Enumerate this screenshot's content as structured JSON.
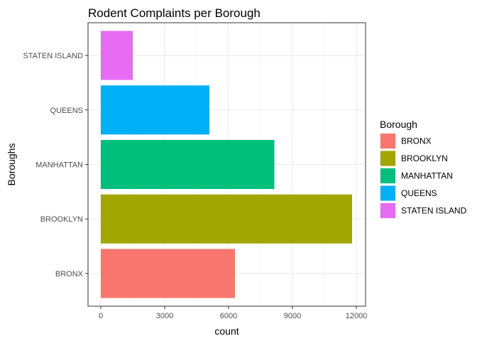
{
  "chart_data": {
    "type": "bar",
    "orientation": "horizontal",
    "title": "Rodent Complaints per Borough",
    "xlabel": "count",
    "ylabel": "Boroughs",
    "categories": [
      "BRONX",
      "BROOKLYN",
      "MANHATTAN",
      "QUEENS",
      "STATEN ISLAND"
    ],
    "values": [
      6300,
      11800,
      8150,
      5100,
      1500
    ],
    "colors": [
      "#F8766D",
      "#A3A500",
      "#00BF7D",
      "#00B0F6",
      "#E76BF3"
    ],
    "xlim": [
      0,
      12300
    ],
    "xticks": [
      0,
      3000,
      6000,
      9000,
      12000
    ],
    "xtick_labels": [
      "0",
      "3000",
      "6000",
      "9000",
      "12000"
    ],
    "grid": true,
    "legend": {
      "title": "Borough",
      "placement": "right",
      "entries": [
        "BRONX",
        "BROOKLYN",
        "MANHATTAN",
        "QUEENS",
        "STATEN ISLAND"
      ]
    }
  }
}
